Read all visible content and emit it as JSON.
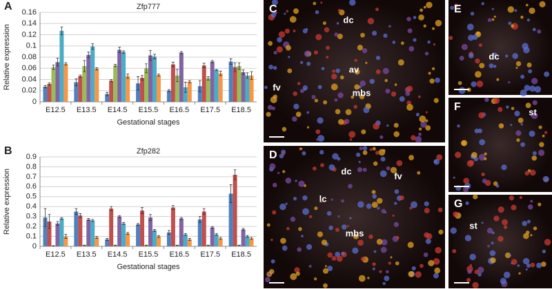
{
  "chart_data": [
    {
      "type": "bar",
      "panel": "A",
      "title": "Zfp777",
      "xlabel": "Gestational stages",
      "ylabel": "Relative expression",
      "categories": [
        "E12.5",
        "E13.5",
        "E14.5",
        "E15.5",
        "E16.5",
        "E17.5",
        "E18.5"
      ],
      "ylim": [
        0,
        0.16
      ],
      "yticks": [
        0,
        0.02,
        0.04,
        0.06,
        0.08,
        0.1,
        0.12,
        0.14,
        0.16
      ],
      "grid": true,
      "series": [
        {
          "color": "#4f81bd",
          "values": [
            0.027,
            0.035,
            0.014,
            0.033,
            0.02,
            0.028,
            0.072
          ],
          "errors": [
            0.002,
            0.006,
            0.003,
            0.012,
            0.002,
            0.01,
            0.005
          ]
        },
        {
          "color": "#c0504d",
          "values": [
            0.032,
            0.046,
            0.038,
            0.043,
            0.067,
            0.065,
            0.062
          ],
          "errors": [
            0.002,
            0.002,
            0.002,
            0.004,
            0.004,
            0.004,
            0.008
          ]
        },
        {
          "color": "#9bbb59",
          "values": [
            0.062,
            0.064,
            0.065,
            0.06,
            0.047,
            0.042,
            0.064
          ],
          "errors": [
            0.004,
            0.01,
            0.002,
            0.008,
            0.011,
            0.003,
            0.006
          ]
        },
        {
          "color": "#8064a2",
          "values": [
            0.071,
            0.084,
            0.093,
            0.083,
            0.088,
            0.072,
            0.053
          ],
          "errors": [
            0.007,
            0.005,
            0.005,
            0.009,
            0.002,
            0.002,
            0.004
          ]
        },
        {
          "color": "#4bacc6",
          "values": [
            0.127,
            0.099,
            0.089,
            0.081,
            0.026,
            0.057,
            0.047
          ],
          "errors": [
            0.007,
            0.005,
            0.002,
            0.004,
            0.009,
            0.001,
            0.005
          ]
        },
        {
          "color": "#f79646",
          "values": [
            0.068,
            0.059,
            0.046,
            0.048,
            0.036,
            0.051,
            0.047
          ],
          "errors": [
            0.002,
            0.002,
            0.004,
            0.002,
            0.002,
            0.004,
            0.007
          ]
        }
      ]
    },
    {
      "type": "bar",
      "panel": "B",
      "title": "Zfp282",
      "xlabel": "Gestational stages",
      "ylabel": "Relative expression",
      "categories": [
        "E12.5",
        "E13.5",
        "E14.5",
        "E15.5",
        "E16.5",
        "E17.5",
        "E18.5"
      ],
      "ylim": [
        0,
        0.9
      ],
      "yticks": [
        0,
        0.1,
        0.2,
        0.3,
        0.4,
        0.5,
        0.6,
        0.7,
        0.8,
        0.9
      ],
      "grid": true,
      "series": [
        {
          "color": "#4f81bd",
          "values": [
            0.29,
            0.35,
            0.07,
            0.22,
            0.14,
            0.27,
            0.53
          ],
          "errors": [
            0.09,
            0.03,
            0.01,
            0.01,
            0.02,
            0.03,
            0.09
          ]
        },
        {
          "color": "#c0504d",
          "values": [
            0.25,
            0.31,
            0.38,
            0.36,
            0.39,
            0.35,
            0.72
          ],
          "errors": [
            0.07,
            0.02,
            0.02,
            0.03,
            0.02,
            0.03,
            0.05
          ]
        },
        {
          "color": "#9bbb59",
          "values": [
            0.005,
            0.01,
            0.01,
            0.01,
            0.01,
            0.01,
            0.01
          ],
          "errors": [
            0.002,
            0.002,
            0.002,
            0.002,
            0.002,
            0.002,
            0.002
          ]
        },
        {
          "color": "#8064a2",
          "values": [
            0.23,
            0.27,
            0.3,
            0.29,
            0.28,
            0.19,
            0.17
          ],
          "errors": [
            0.02,
            0.01,
            0.01,
            0.03,
            0.01,
            0.01,
            0.01
          ]
        },
        {
          "color": "#4bacc6",
          "values": [
            0.28,
            0.26,
            0.23,
            0.16,
            0.12,
            0.12,
            0.1
          ],
          "errors": [
            0.01,
            0.01,
            0.01,
            0.01,
            0.01,
            0.01,
            0.01
          ]
        },
        {
          "color": "#f79646",
          "values": [
            0.1,
            0.09,
            0.13,
            0.1,
            0.07,
            0.08,
            0.08
          ],
          "errors": [
            0.02,
            0.01,
            0.01,
            0.01,
            0.01,
            0.01,
            0.01
          ]
        }
      ]
    }
  ],
  "image_panels": [
    {
      "letter": "C",
      "labels": [
        "dc",
        "av",
        "fv",
        "mbs"
      ]
    },
    {
      "letter": "D",
      "labels": [
        "dc",
        "fv",
        "lc",
        "mbs"
      ]
    },
    {
      "letter": "E",
      "labels": [
        "dc"
      ]
    },
    {
      "letter": "F",
      "labels": [
        "st"
      ]
    },
    {
      "letter": "G",
      "labels": [
        "st"
      ]
    }
  ]
}
